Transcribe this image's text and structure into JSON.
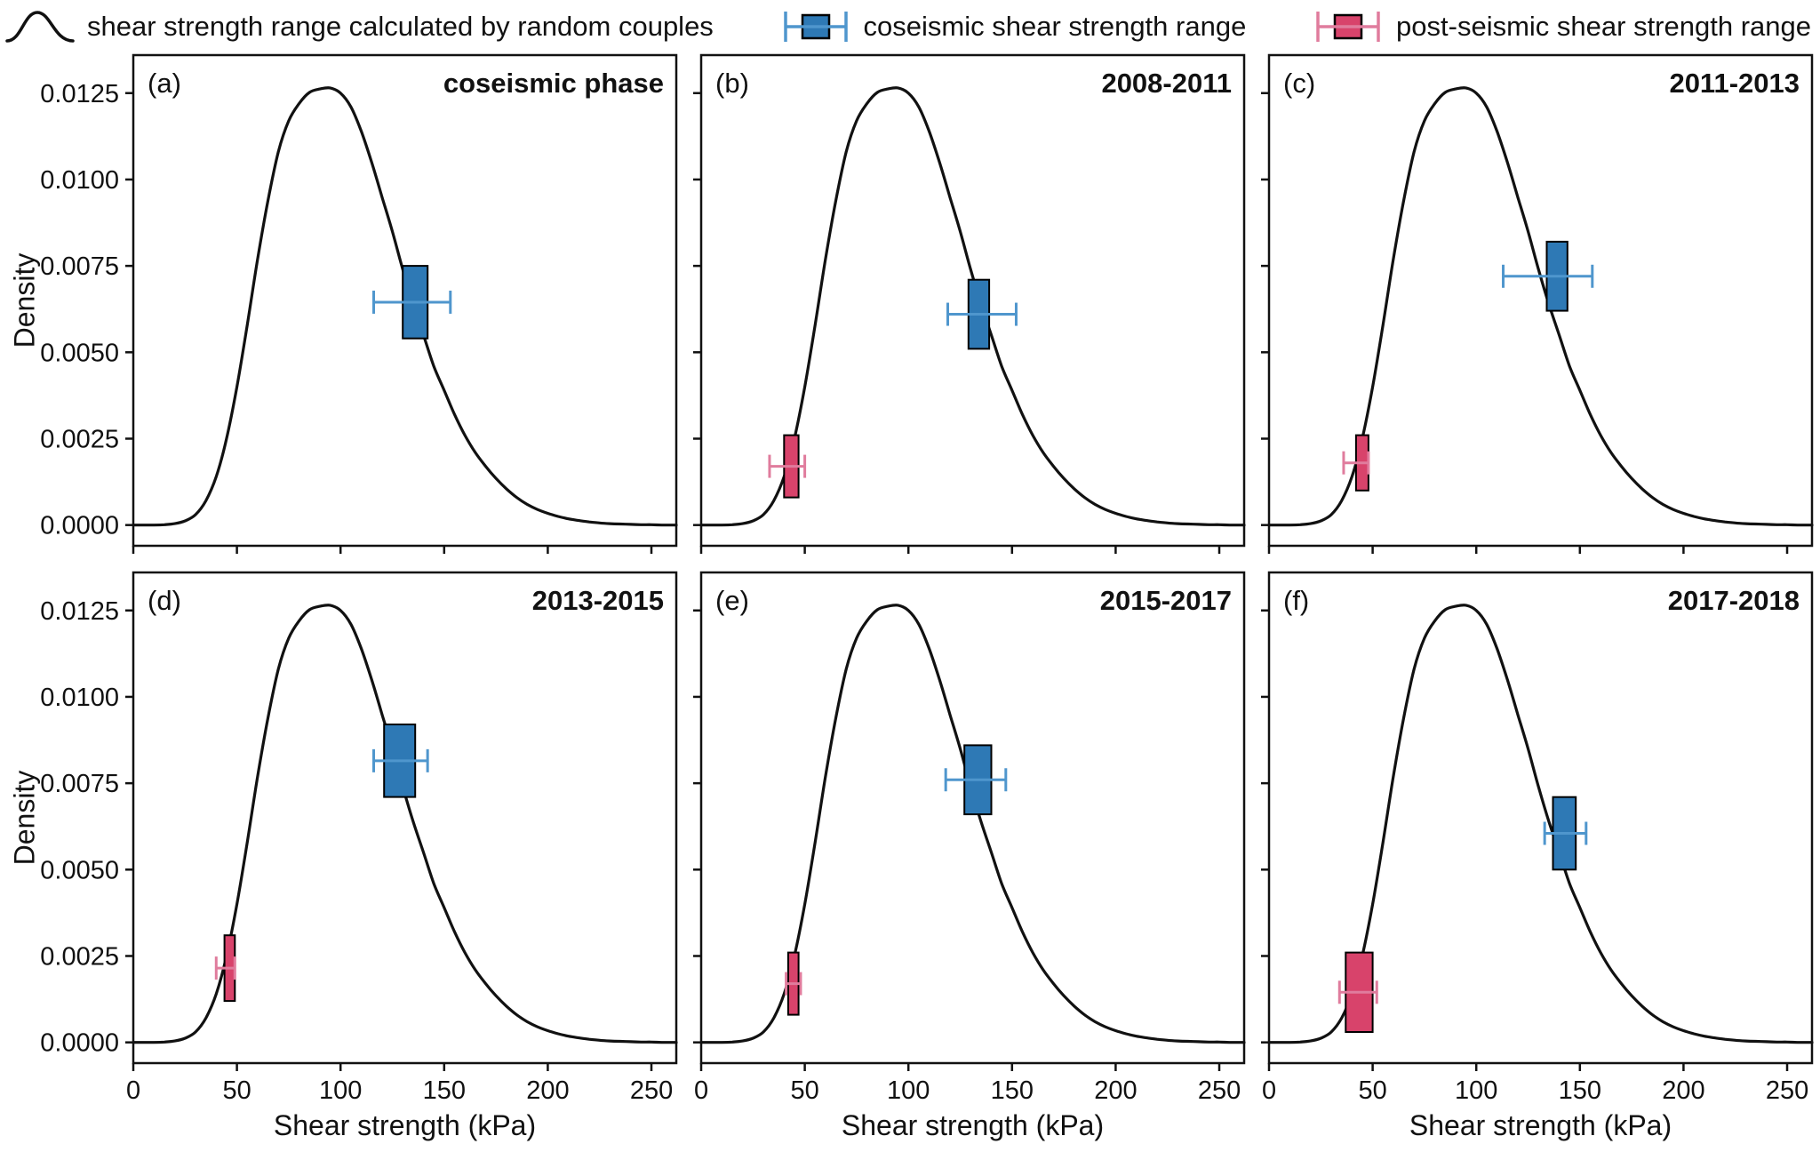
{
  "colors": {
    "curve": "#111111",
    "box_edge": "#000000",
    "coseismic_fill": "#2e79b5",
    "coseismic_whisker": "#4f96cd",
    "postseismic_fill": "#d8436b",
    "postseismic_whisker": "#e07c9d"
  },
  "legend": {
    "items": [
      {
        "label": "shear strength range calculated by random couples",
        "type": "curve"
      },
      {
        "label": "coseismic shear strength range",
        "type": "box-blue"
      },
      {
        "label": "post-seismic shear strength range",
        "type": "box-red"
      }
    ]
  },
  "chart_data": {
    "type": "line",
    "title": "",
    "xlabel": "Shear strength (kPa)",
    "ylabel": "Density",
    "xlim": [
      0,
      262
    ],
    "ylim": [
      -0.0006,
      0.0136
    ],
    "x_ticks": [
      0,
      50,
      100,
      150,
      200,
      250
    ],
    "x_tick_labels": [
      "0",
      "50",
      "100",
      "150",
      "200",
      "250"
    ],
    "y_ticks": [
      0.0,
      0.0025,
      0.005,
      0.0075,
      0.01,
      0.0125
    ],
    "y_tick_labels": [
      "0.0000",
      "0.0025",
      "0.0050",
      "0.0075",
      "0.0100",
      "0.0125"
    ],
    "grid": false,
    "legend_position": "top",
    "kde_curve": {
      "x": [
        0,
        5,
        10,
        15,
        20,
        25,
        30,
        35,
        40,
        45,
        50,
        55,
        60,
        65,
        70,
        75,
        80,
        85,
        90,
        95,
        100,
        105,
        110,
        115,
        120,
        125,
        130,
        135,
        140,
        145,
        150,
        155,
        160,
        165,
        170,
        175,
        180,
        185,
        190,
        195,
        200,
        205,
        210,
        215,
        220,
        225,
        230,
        235,
        240,
        245,
        250,
        255,
        260,
        262
      ],
      "y": [
        0,
        0,
        0,
        1e-05,
        4e-05,
        0.00012,
        0.0003,
        0.0007,
        0.0014,
        0.0025,
        0.004,
        0.0058,
        0.0077,
        0.0094,
        0.0108,
        0.0117,
        0.0122,
        0.01252,
        0.01262,
        0.01265,
        0.0125,
        0.0121,
        0.0114,
        0.0105,
        0.0095,
        0.0085,
        0.0074,
        0.0064,
        0.0055,
        0.0046,
        0.0039,
        0.0032,
        0.0026,
        0.0021,
        0.0017,
        0.00135,
        0.00105,
        0.0008,
        0.0006,
        0.00045,
        0.00034,
        0.00025,
        0.00018,
        0.00013,
        9e-05,
        6e-05,
        4e-05,
        3e-05,
        2e-05,
        1e-05,
        1e-05,
        0,
        0,
        0
      ]
    },
    "panels": [
      {
        "id": "a",
        "label": "(a)",
        "annotation": "coseismic phase",
        "coseismic_box": {
          "x_min": 130,
          "x_max": 142,
          "y_min": 0.0054,
          "y_max": 0.0075,
          "whisker_y": 0.00645,
          "whisker_x_min": 116,
          "whisker_x_max": 153
        },
        "postseismic_box": null
      },
      {
        "id": "b",
        "label": "(b)",
        "annotation": "2008-2011",
        "coseismic_box": {
          "x_min": 129,
          "x_max": 139,
          "y_min": 0.0051,
          "y_max": 0.0071,
          "whisker_y": 0.0061,
          "whisker_x_min": 119,
          "whisker_x_max": 152
        },
        "postseismic_box": {
          "x_min": 40,
          "x_max": 47,
          "y_min": 0.0008,
          "y_max": 0.0026,
          "whisker_y": 0.0017,
          "whisker_x_min": 33,
          "whisker_x_max": 50
        }
      },
      {
        "id": "c",
        "label": "(c)",
        "annotation": "2011-2013",
        "coseismic_box": {
          "x_min": 134,
          "x_max": 144,
          "y_min": 0.0062,
          "y_max": 0.0082,
          "whisker_y": 0.0072,
          "whisker_x_min": 113,
          "whisker_x_max": 156
        },
        "postseismic_box": {
          "x_min": 42,
          "x_max": 48,
          "y_min": 0.001,
          "y_max": 0.0026,
          "whisker_y": 0.0018,
          "whisker_x_min": 36,
          "whisker_x_max": 48
        }
      },
      {
        "id": "d",
        "label": "(d)",
        "annotation": "2013-2015",
        "coseismic_box": {
          "x_min": 121,
          "x_max": 136,
          "y_min": 0.0071,
          "y_max": 0.0092,
          "whisker_y": 0.00815,
          "whisker_x_min": 116,
          "whisker_x_max": 142
        },
        "postseismic_box": {
          "x_min": 44,
          "x_max": 49,
          "y_min": 0.0012,
          "y_max": 0.0031,
          "whisker_y": 0.00215,
          "whisker_x_min": 40,
          "whisker_x_max": 49
        }
      },
      {
        "id": "e",
        "label": "(e)",
        "annotation": "2015-2017",
        "coseismic_box": {
          "x_min": 127,
          "x_max": 140,
          "y_min": 0.0066,
          "y_max": 0.0086,
          "whisker_y": 0.0076,
          "whisker_x_min": 118,
          "whisker_x_max": 147
        },
        "postseismic_box": {
          "x_min": 42,
          "x_max": 47,
          "y_min": 0.0008,
          "y_max": 0.0026,
          "whisker_y": 0.0017,
          "whisker_x_min": 41,
          "whisker_x_max": 48
        }
      },
      {
        "id": "f",
        "label": "(f)",
        "annotation": "2017-2018",
        "coseismic_box": {
          "x_min": 137,
          "x_max": 148,
          "y_min": 0.005,
          "y_max": 0.0071,
          "whisker_y": 0.00605,
          "whisker_x_min": 133,
          "whisker_x_max": 153
        },
        "postseismic_box": {
          "x_min": 37,
          "x_max": 50,
          "y_min": 0.0003,
          "y_max": 0.0026,
          "whisker_y": 0.00145,
          "whisker_x_min": 34,
          "whisker_x_max": 52
        }
      }
    ]
  }
}
